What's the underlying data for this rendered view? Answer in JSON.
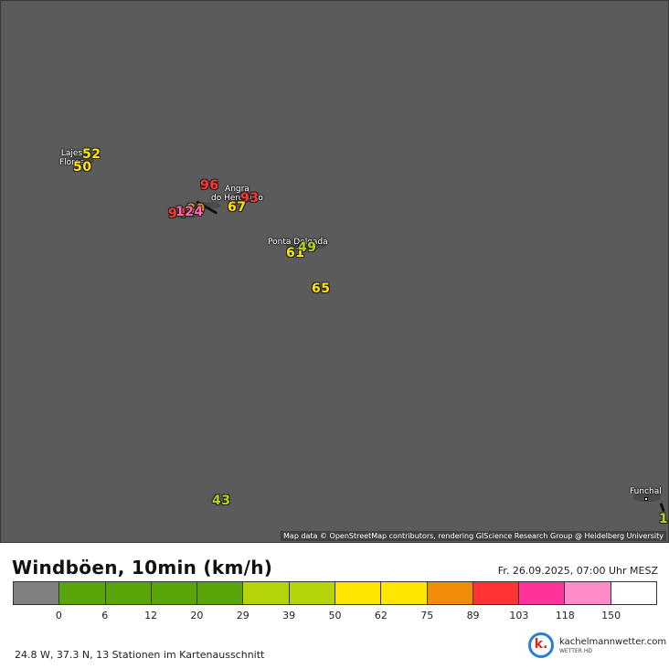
{
  "map": {
    "attribution": "Map data © OpenStreetMap contributors, rendering GIScience Research Group @ Heidelberg University",
    "cities": [
      {
        "id": "lajes",
        "line1": "Lajes",
        "line2": "Flores"
      },
      {
        "id": "angra",
        "line1": "Angra",
        "line2": "do Heroísmo"
      },
      {
        "id": "pontadelgada",
        "line1": "Ponta Delgada",
        "line2": ""
      },
      {
        "id": "funchal",
        "line1": "Funchal",
        "line2": ""
      }
    ],
    "stations": [
      {
        "id": "s1",
        "value": "52",
        "color": "#ffe600"
      },
      {
        "id": "s2",
        "value": "50",
        "color": "#ffe600"
      },
      {
        "id": "s3",
        "value": "96",
        "color": "#ff3333"
      },
      {
        "id": "s4",
        "value": "93",
        "color": "#ff3333"
      },
      {
        "id": "s5",
        "value": "67",
        "color": "#ffe600"
      },
      {
        "id": "s6",
        "value": "80",
        "color": "#f08c0a"
      },
      {
        "id": "s7",
        "value": "94",
        "color": "#ff3333"
      },
      {
        "id": "s8",
        "value": "124",
        "color": "#ff66b3"
      },
      {
        "id": "s9",
        "value": "61",
        "color": "#ffe600"
      },
      {
        "id": "s10",
        "value": "49",
        "color": "#b5d40a"
      },
      {
        "id": "s11",
        "value": "65",
        "color": "#ffe600"
      },
      {
        "id": "s12",
        "value": "43",
        "color": "#b5d40a"
      },
      {
        "id": "s13",
        "value": "1",
        "color": "#b5d40a"
      }
    ]
  },
  "legend": {
    "title": "Windböen, 10min (km/h)",
    "datetime": "Fr. 26.09.2025, 07:00 Uhr MESZ",
    "colors": [
      "#808080",
      "#5aa50a",
      "#5aa50a",
      "#5aa50a",
      "#5aa50a",
      "#b5d40a",
      "#b5d40a",
      "#ffe600",
      "#ffe600",
      "#f08c0a",
      "#ff3333",
      "#ff3399",
      "#ff8cc8",
      "#ffffff"
    ],
    "ticks": [
      "0",
      "6",
      "12",
      "20",
      "29",
      "39",
      "50",
      "62",
      "75",
      "89",
      "103",
      "118",
      "150"
    ]
  },
  "footer": {
    "info": "24.8 W, 37.3 N, 13 Stationen im Kartenausschnitt",
    "brand_name": "kachelmannwetter.com",
    "brand_sub": "WETTER HD",
    "brand_logo": "k."
  }
}
